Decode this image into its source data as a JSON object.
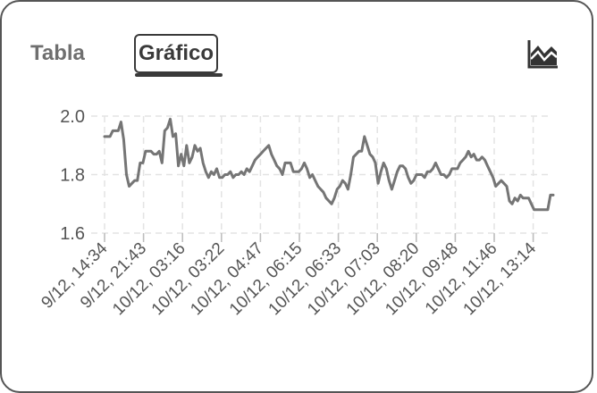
{
  "tabs": [
    {
      "label": "Tabla",
      "active": false
    },
    {
      "label": "Gráfico",
      "active": true
    }
  ],
  "chart_toggle_icon": "area-chart-icon",
  "chart_data": {
    "type": "line",
    "ylim": [
      1.6,
      2.0
    ],
    "y_ticks": [
      "2.0",
      "1.8",
      "1.6"
    ],
    "x_tick_labels": [
      "9/12, 14:34",
      "9/12, 21:43",
      "10/12, 03:16",
      "10/12, 03:22",
      "10/12, 04:47",
      "10/12, 06:15",
      "10/12, 06:33",
      "10/12, 07:03",
      "10/12, 08:20",
      "10/12, 09:48",
      "10/12, 11:46",
      "10/12, 13:14"
    ],
    "line_color": "#757575",
    "grid": true,
    "values": [
      1.93,
      1.93,
      1.93,
      1.95,
      1.95,
      1.95,
      1.98,
      1.92,
      1.8,
      1.76,
      1.77,
      1.78,
      1.78,
      1.84,
      1.84,
      1.88,
      1.88,
      1.88,
      1.87,
      1.87,
      1.88,
      1.84,
      1.95,
      1.96,
      1.99,
      1.93,
      1.94,
      1.83,
      1.87,
      1.83,
      1.9,
      1.84,
      1.86,
      1.9,
      1.88,
      1.89,
      1.84,
      1.81,
      1.79,
      1.81,
      1.8,
      1.82,
      1.79,
      1.79,
      1.8,
      1.8,
      1.81,
      1.79,
      1.8,
      1.8,
      1.81,
      1.8,
      1.82,
      1.81,
      1.83,
      1.85,
      1.86,
      1.87,
      1.88,
      1.89,
      1.9,
      1.87,
      1.85,
      1.83,
      1.82,
      1.8,
      1.84,
      1.84,
      1.84,
      1.81,
      1.81,
      1.81,
      1.82,
      1.84,
      1.82,
      1.79,
      1.8,
      1.78,
      1.76,
      1.75,
      1.74,
      1.72,
      1.71,
      1.7,
      1.72,
      1.75,
      1.76,
      1.78,
      1.77,
      1.75,
      1.8,
      1.86,
      1.87,
      1.88,
      1.88,
      1.93,
      1.9,
      1.87,
      1.86,
      1.84,
      1.77,
      1.81,
      1.84,
      1.82,
      1.78,
      1.75,
      1.78,
      1.81,
      1.83,
      1.83,
      1.82,
      1.79,
      1.77,
      1.78,
      1.8,
      1.8,
      1.8,
      1.79,
      1.81,
      1.81,
      1.82,
      1.84,
      1.82,
      1.8,
      1.8,
      1.79,
      1.8,
      1.82,
      1.82,
      1.82,
      1.84,
      1.85,
      1.86,
      1.88,
      1.86,
      1.87,
      1.85,
      1.85,
      1.86,
      1.85,
      1.83,
      1.81,
      1.79,
      1.76,
      1.77,
      1.78,
      1.77,
      1.76,
      1.71,
      1.7,
      1.72,
      1.71,
      1.73,
      1.72,
      1.72,
      1.72,
      1.7,
      1.68,
      1.68,
      1.68,
      1.68,
      1.68,
      1.68,
      1.73,
      1.73
    ]
  }
}
